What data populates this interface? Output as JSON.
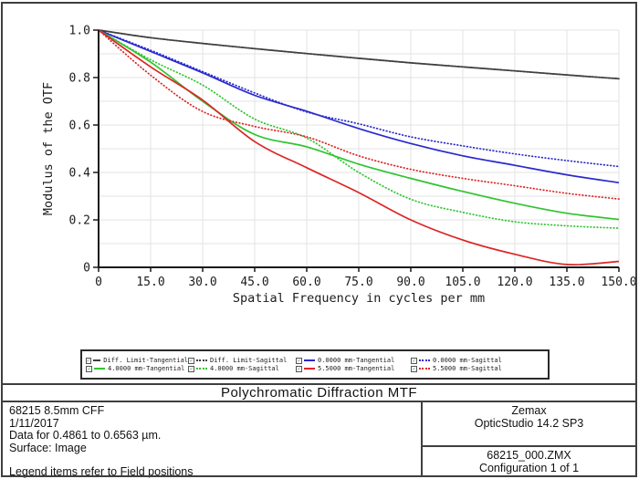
{
  "title_bar": {
    "title": "Polychromatic Diffraction MTF"
  },
  "info_panel": {
    "lines": [
      "68215 8.5mm CFF",
      "1/11/2017",
      "Data for 0.4861 to 0.6563 µm.",
      "Surface: Image"
    ],
    "note": "Legend items refer to Field positions"
  },
  "app_panel": {
    "vendor": "Zemax",
    "version": "OpticStudio 14.2 SP3",
    "file": "68215_000.ZMX",
    "configuration": "Configuration 1 of 1"
  },
  "y_axis": {
    "label": "Modulus of the OTF",
    "ticks": [
      "1.0",
      "0.8",
      "0.6",
      "0.4",
      "0.2",
      "0"
    ]
  },
  "x_axis": {
    "label": "Spatial Frequency in cycles per mm",
    "ticks": [
      "0",
      "15.0",
      "30.0",
      "45.0",
      "60.0",
      "75.0",
      "90.0",
      "105.0",
      "120.0",
      "135.0",
      "150.0"
    ]
  },
  "colors": {
    "diff_limit": "#3f3f3f",
    "field_0mm": "#2929cf",
    "field_4mm": "#2fc42f",
    "field_55mm": "#dd2626",
    "grid": "#e3e3e3",
    "axis": "#1a1a1a",
    "checkbox_check": "#1c9a1c"
  },
  "chart_data": {
    "type": "line",
    "title": "Polychromatic Diffraction MTF",
    "xlabel": "Spatial Frequency in cycles per mm",
    "ylabel": "Modulus of the OTF",
    "xlim": [
      0,
      150
    ],
    "ylim": [
      0,
      1.0
    ],
    "grid": true,
    "grid_step_x": 15,
    "grid_step_y": 0.1,
    "legend_position": "below-plot",
    "x": [
      0,
      15,
      30,
      45,
      60,
      75,
      90,
      105,
      120,
      135,
      150
    ],
    "series": [
      {
        "name": "Diff. Limit-Tangential",
        "color": "#3f3f3f",
        "style": "solid",
        "values": [
          1.0,
          0.968,
          0.944,
          0.922,
          0.901,
          0.881,
          0.862,
          0.845,
          0.828,
          0.811,
          0.795
        ]
      },
      {
        "name": "Diff. Limit-Sagittal",
        "color": "#3f3f3f",
        "style": "dotted",
        "values": [
          1.0,
          0.968,
          0.944,
          0.922,
          0.901,
          0.881,
          0.862,
          0.845,
          0.828,
          0.811,
          0.795
        ]
      },
      {
        "name": "0.0000 mm-Tangential",
        "color": "#2929cf",
        "style": "solid",
        "values": [
          1.0,
          0.91,
          0.82,
          0.725,
          0.658,
          0.585,
          0.522,
          0.47,
          0.43,
          0.39,
          0.357
        ]
      },
      {
        "name": "0.0000 mm-Sagittal",
        "color": "#2929cf",
        "style": "dotted",
        "values": [
          1.0,
          0.915,
          0.825,
          0.735,
          0.655,
          0.605,
          0.55,
          0.512,
          0.478,
          0.45,
          0.425
        ]
      },
      {
        "name": "4.0000 mm-Tangential",
        "color": "#2fc42f",
        "style": "solid",
        "values": [
          1.0,
          0.865,
          0.7,
          0.56,
          0.508,
          0.435,
          0.375,
          0.32,
          0.27,
          0.228,
          0.202
        ]
      },
      {
        "name": "4.0000 mm-Sagittal",
        "color": "#2fc42f",
        "style": "dotted",
        "values": [
          1.0,
          0.875,
          0.768,
          0.625,
          0.545,
          0.4,
          0.287,
          0.232,
          0.192,
          0.175,
          0.165
        ]
      },
      {
        "name": "5.5000 mm-Tangential",
        "color": "#dd2626",
        "style": "solid",
        "values": [
          1.0,
          0.845,
          0.705,
          0.53,
          0.42,
          0.315,
          0.2,
          0.115,
          0.055,
          0.012,
          0.025
        ]
      },
      {
        "name": "5.5000 mm-Sagittal",
        "color": "#dd2626",
        "style": "dotted",
        "values": [
          1.0,
          0.81,
          0.657,
          0.594,
          0.55,
          0.47,
          0.413,
          0.375,
          0.344,
          0.312,
          0.288
        ]
      }
    ]
  }
}
